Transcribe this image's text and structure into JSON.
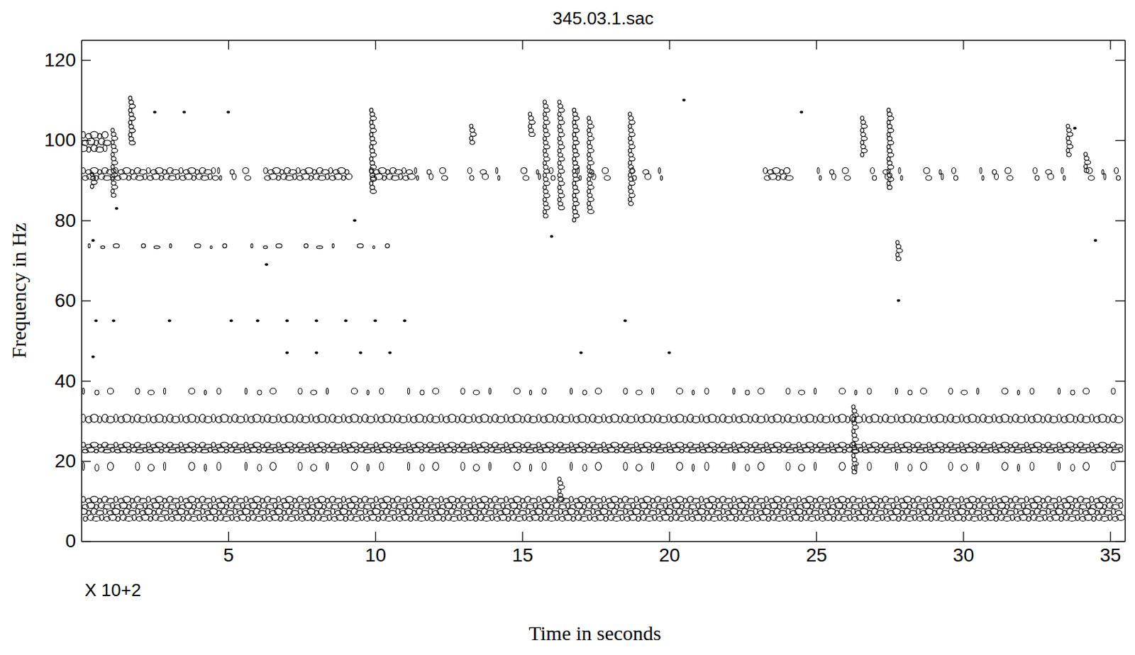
{
  "chart_data": {
    "type": "spectrogram",
    "title": "345.03.1.sac",
    "x_label": "Time in seconds",
    "y_label": "Frequency in Hz",
    "x_multiplier": "X 10+2",
    "xlim": [
      0,
      35.5
    ],
    "ylim": [
      0,
      125
    ],
    "xticks": [
      5,
      10,
      15,
      20,
      25,
      30,
      35
    ],
    "yticks": [
      0,
      20,
      40,
      60,
      80,
      100,
      120
    ],
    "color": "#000000",
    "bands": [
      {
        "low": 97,
        "high": 102,
        "line_style": "solid",
        "segments": [
          [
            0,
            1.0
          ]
        ]
      },
      {
        "low": 90,
        "high": 93,
        "line_style": "solid",
        "segments": [
          [
            0,
            4.6
          ],
          [
            6.2,
            9.2
          ],
          [
            9.8,
            11.3
          ],
          [
            23.2,
            24.2
          ]
        ]
      },
      {
        "low": 90,
        "high": 93,
        "line_style": "dotted",
        "segments": [
          [
            4.6,
            6.2
          ],
          [
            11.3,
            20.5
          ],
          [
            25,
            35.5
          ]
        ]
      },
      {
        "low": 73,
        "high": 74,
        "line_style": "dotted",
        "segments": [
          [
            0.2,
            11
          ]
        ]
      },
      {
        "low": 36.5,
        "high": 38,
        "line_style": "dotted",
        "segments": [
          [
            0,
            35.5
          ]
        ]
      },
      {
        "low": 29.5,
        "high": 31.5,
        "line_style": "solid",
        "segments": [
          [
            0,
            35.5
          ]
        ]
      },
      {
        "low": 22,
        "high": 24.5,
        "line_style": "solid",
        "segments": [
          [
            0,
            35.5
          ]
        ]
      },
      {
        "low": 17.5,
        "high": 19.5,
        "line_style": "dotted",
        "segments": [
          [
            0,
            35.5
          ]
        ]
      },
      {
        "low": 5,
        "high": 11,
        "line_style": "solid",
        "segments": [
          [
            0,
            35.5
          ]
        ]
      }
    ],
    "streaks": [
      {
        "time": 1.1,
        "low": 86,
        "high": 103
      },
      {
        "time": 9.9,
        "low": 87,
        "high": 108
      },
      {
        "time": 15.8,
        "low": 80,
        "high": 110
      },
      {
        "time": 16.3,
        "low": 82,
        "high": 110
      },
      {
        "time": 16.8,
        "low": 79,
        "high": 108
      },
      {
        "time": 17.3,
        "low": 82,
        "high": 106
      },
      {
        "time": 18.7,
        "low": 84,
        "high": 107
      },
      {
        "time": 27.5,
        "low": 88,
        "high": 108
      },
      {
        "time": 26.3,
        "low": 17,
        "high": 34
      },
      {
        "time": 27.8,
        "low": 70,
        "high": 75
      },
      {
        "time": 1.7,
        "low": 99,
        "high": 111
      },
      {
        "time": 13.3,
        "low": 99,
        "high": 104
      },
      {
        "time": 15.3,
        "low": 101,
        "high": 107
      },
      {
        "time": 26.6,
        "low": 96,
        "high": 106
      },
      {
        "time": 33.6,
        "low": 96,
        "high": 104
      },
      {
        "time": 34.2,
        "low": 92,
        "high": 97
      },
      {
        "time": 0.4,
        "low": 88,
        "high": 92
      },
      {
        "time": 16.3,
        "low": 10,
        "high": 16
      }
    ],
    "dots": [
      [
        0.4,
        46
      ],
      [
        0.5,
        55
      ],
      [
        0.4,
        75
      ],
      [
        1.1,
        55
      ],
      [
        3.0,
        55
      ],
      [
        5.1,
        55
      ],
      [
        6.0,
        55
      ],
      [
        7.0,
        55
      ],
      [
        8.0,
        55
      ],
      [
        9.0,
        55
      ],
      [
        10.0,
        55
      ],
      [
        11.0,
        55
      ],
      [
        7.0,
        47
      ],
      [
        8.0,
        47
      ],
      [
        9.5,
        47
      ],
      [
        10.5,
        47
      ],
      [
        24.5,
        107
      ],
      [
        33.8,
        103
      ],
      [
        27.8,
        60
      ],
      [
        17.0,
        47
      ],
      [
        18.5,
        55
      ],
      [
        20.0,
        47
      ],
      [
        1.2,
        83
      ],
      [
        9.3,
        80
      ],
      [
        16.0,
        76
      ],
      [
        34.5,
        75
      ],
      [
        6.3,
        69
      ],
      [
        2.5,
        107
      ],
      [
        3.5,
        107
      ],
      [
        5.0,
        107
      ],
      [
        20.5,
        110
      ]
    ]
  }
}
